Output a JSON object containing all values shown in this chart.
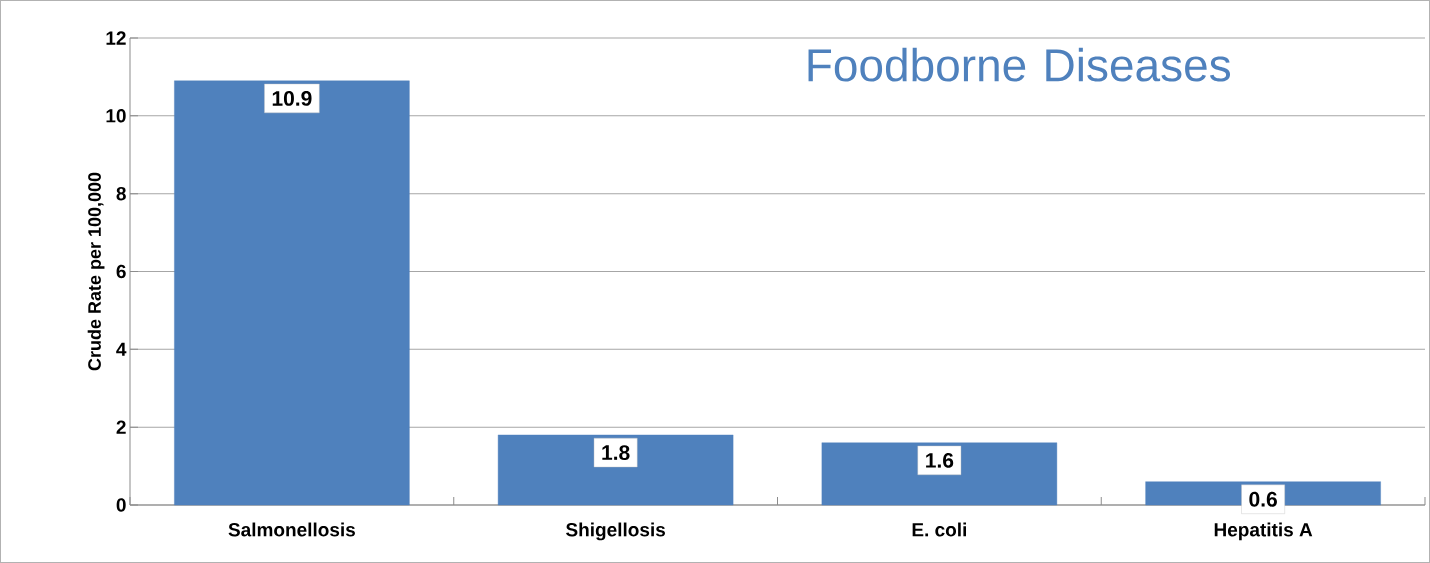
{
  "chart_data": {
    "type": "bar",
    "title": "Foodborne Diseases",
    "ylabel": "Crude Rate per 100,000",
    "categories": [
      "Salmonellosis",
      "Shigellosis",
      "E. coli",
      "Hepatitis A"
    ],
    "values": [
      10.9,
      1.8,
      1.6,
      0.6
    ],
    "color": "#4f81bd",
    "data_labels": true,
    "ylim": [
      0,
      12
    ],
    "yticks": [
      0,
      2,
      4,
      6,
      8,
      10,
      12
    ],
    "grid": "y"
  }
}
